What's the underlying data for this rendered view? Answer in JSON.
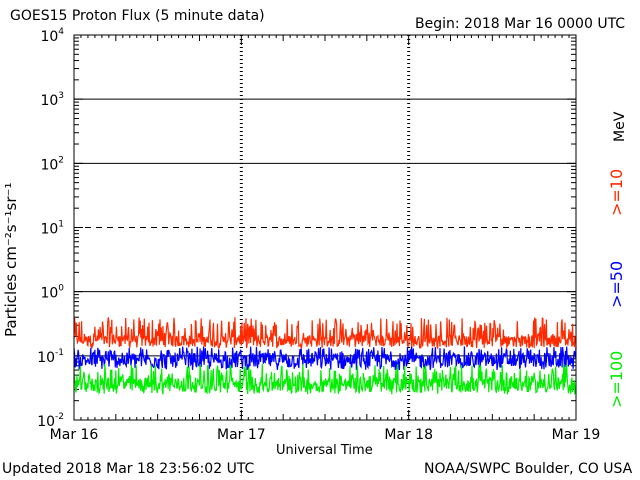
{
  "header": {
    "title": "GOES15 Proton Flux (5 minute data)",
    "begin": "Begin: 2018 Mar 16 0000 UTC"
  },
  "footer": {
    "updated": "Updated 2018 Mar 18 23:56:02 UTC",
    "source": "NOAA/SWPC Boulder, CO USA"
  },
  "chart_data": {
    "type": "line",
    "title": "GOES15 Proton Flux (5 minute data)",
    "xlabel": "Universal Time",
    "ylabel": "Particles cm⁻²s⁻¹sr⁻¹",
    "y_scale": "log",
    "ylim": [
      0.01,
      10000
    ],
    "x_ticks": [
      "Mar 16",
      "Mar 17",
      "Mar 18",
      "Mar 19"
    ],
    "xlim_days": [
      0,
      3
    ],
    "y_tick_labels": [
      {
        "base": "10",
        "exp": "4",
        "value": 10000
      },
      {
        "base": "10",
        "exp": "3",
        "value": 1000
      },
      {
        "base": "10",
        "exp": "2",
        "value": 100
      },
      {
        "base": "10",
        "exp": "1",
        "value": 10
      },
      {
        "base": "10",
        "exp": "0",
        "value": 1
      },
      {
        "base": "10",
        "exp": "-1",
        "value": 0.1
      },
      {
        "base": "10",
        "exp": "-2",
        "value": 0.01
      }
    ],
    "reference_lines": [
      {
        "value": 1000,
        "style": "solid"
      },
      {
        "value": 100,
        "style": "solid"
      },
      {
        "value": 10,
        "style": "dashed"
      },
      {
        "value": 1,
        "style": "solid"
      },
      {
        "value": 0.1,
        "style": "solid"
      }
    ],
    "series": [
      {
        "name": ">=10",
        "color": "#ff2a00",
        "low": 0.13,
        "high": 0.4,
        "typical": 0.17
      },
      {
        "name": ">=50",
        "color": "#0000ff",
        "low": 0.06,
        "high": 0.14,
        "typical": 0.085
      },
      {
        "name": ">=100",
        "color": "#00ee00",
        "low": 0.025,
        "high": 0.075,
        "typical": 0.035
      }
    ],
    "right_legend": {
      "unit": "MeV"
    }
  }
}
